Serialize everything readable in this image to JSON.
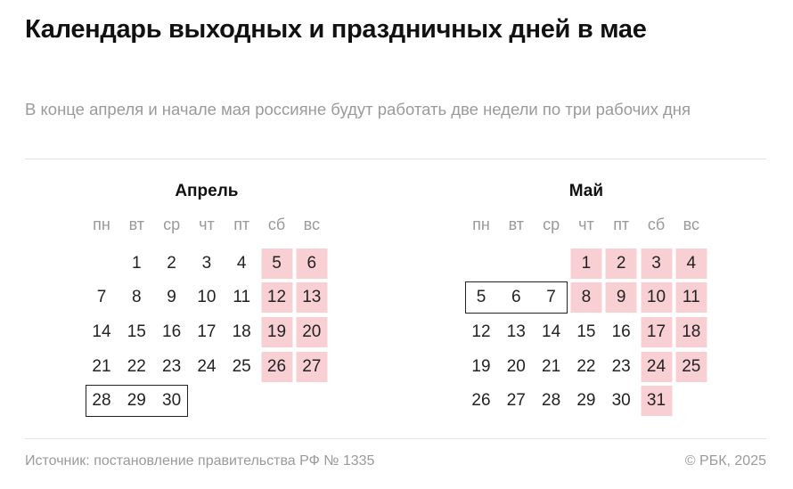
{
  "header": {
    "title": "Календарь выходных и праздничных дней в мае",
    "subtitle": "В конце апреля и начале мая россияне будут работать две недели по три рабочих дня"
  },
  "weekdays": [
    "пн",
    "вт",
    "ср",
    "чт",
    "пт",
    "сб",
    "вс"
  ],
  "colors": {
    "holiday": "#f8d0d4",
    "text": "#222222",
    "muted": "#9a9a9a"
  },
  "months": [
    {
      "name": "Апрель",
      "first_weekday": 2,
      "days": 30,
      "holidays": [
        5,
        6,
        12,
        13,
        19,
        20,
        26,
        27
      ],
      "boxed_workdays": [
        28,
        29,
        30
      ]
    },
    {
      "name": "Май",
      "first_weekday": 4,
      "days": 31,
      "holidays": [
        1,
        2,
        3,
        4,
        8,
        9,
        10,
        11,
        17,
        18,
        24,
        25,
        31
      ],
      "boxed_workdays": [
        5,
        6,
        7
      ]
    }
  ],
  "footer": {
    "source": "Источник: постановление правительства РФ № 1335",
    "copyright": "© РБК, 2025"
  }
}
